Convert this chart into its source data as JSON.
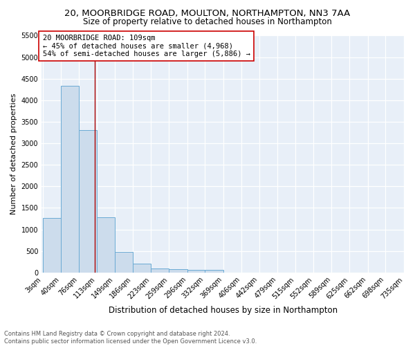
{
  "title1": "20, MOORBRIDGE ROAD, MOULTON, NORTHAMPTON, NN3 7AA",
  "title2": "Size of property relative to detached houses in Northampton",
  "xlabel": "Distribution of detached houses by size in Northampton",
  "ylabel": "Number of detached properties",
  "footnote": "Contains HM Land Registry data © Crown copyright and database right 2024.\nContains public sector information licensed under the Open Government Licence v3.0.",
  "bin_edges": [
    3,
    40,
    76,
    113,
    149,
    186,
    223,
    259,
    296,
    332,
    369,
    406,
    442,
    479,
    515,
    552,
    589,
    625,
    662,
    698,
    735
  ],
  "bar_heights": [
    1270,
    4330,
    3300,
    1280,
    480,
    210,
    95,
    70,
    55,
    55,
    0,
    0,
    0,
    0,
    0,
    0,
    0,
    0,
    0,
    0
  ],
  "bar_color": "#ccdcec",
  "bar_edge_color": "#6aaad4",
  "property_size": 109,
  "vline_color": "#aa0000",
  "annotation_line1": "20 MOORBRIDGE ROAD: 109sqm",
  "annotation_line2": "← 45% of detached houses are smaller (4,968)",
  "annotation_line3": "54% of semi-detached houses are larger (5,886) →",
  "annotation_box_color": "#ffffff",
  "annotation_box_edge_color": "#cc0000",
  "ylim_max": 5500,
  "yticks": [
    0,
    500,
    1000,
    1500,
    2000,
    2500,
    3000,
    3500,
    4000,
    4500,
    5000,
    5500
  ],
  "bg_color": "#e8eff8",
  "title1_fontsize": 9.5,
  "title2_fontsize": 8.5,
  "xlabel_fontsize": 8.5,
  "ylabel_fontsize": 8,
  "tick_fontsize": 7,
  "annotation_fontsize": 7.5,
  "footnote_fontsize": 6
}
